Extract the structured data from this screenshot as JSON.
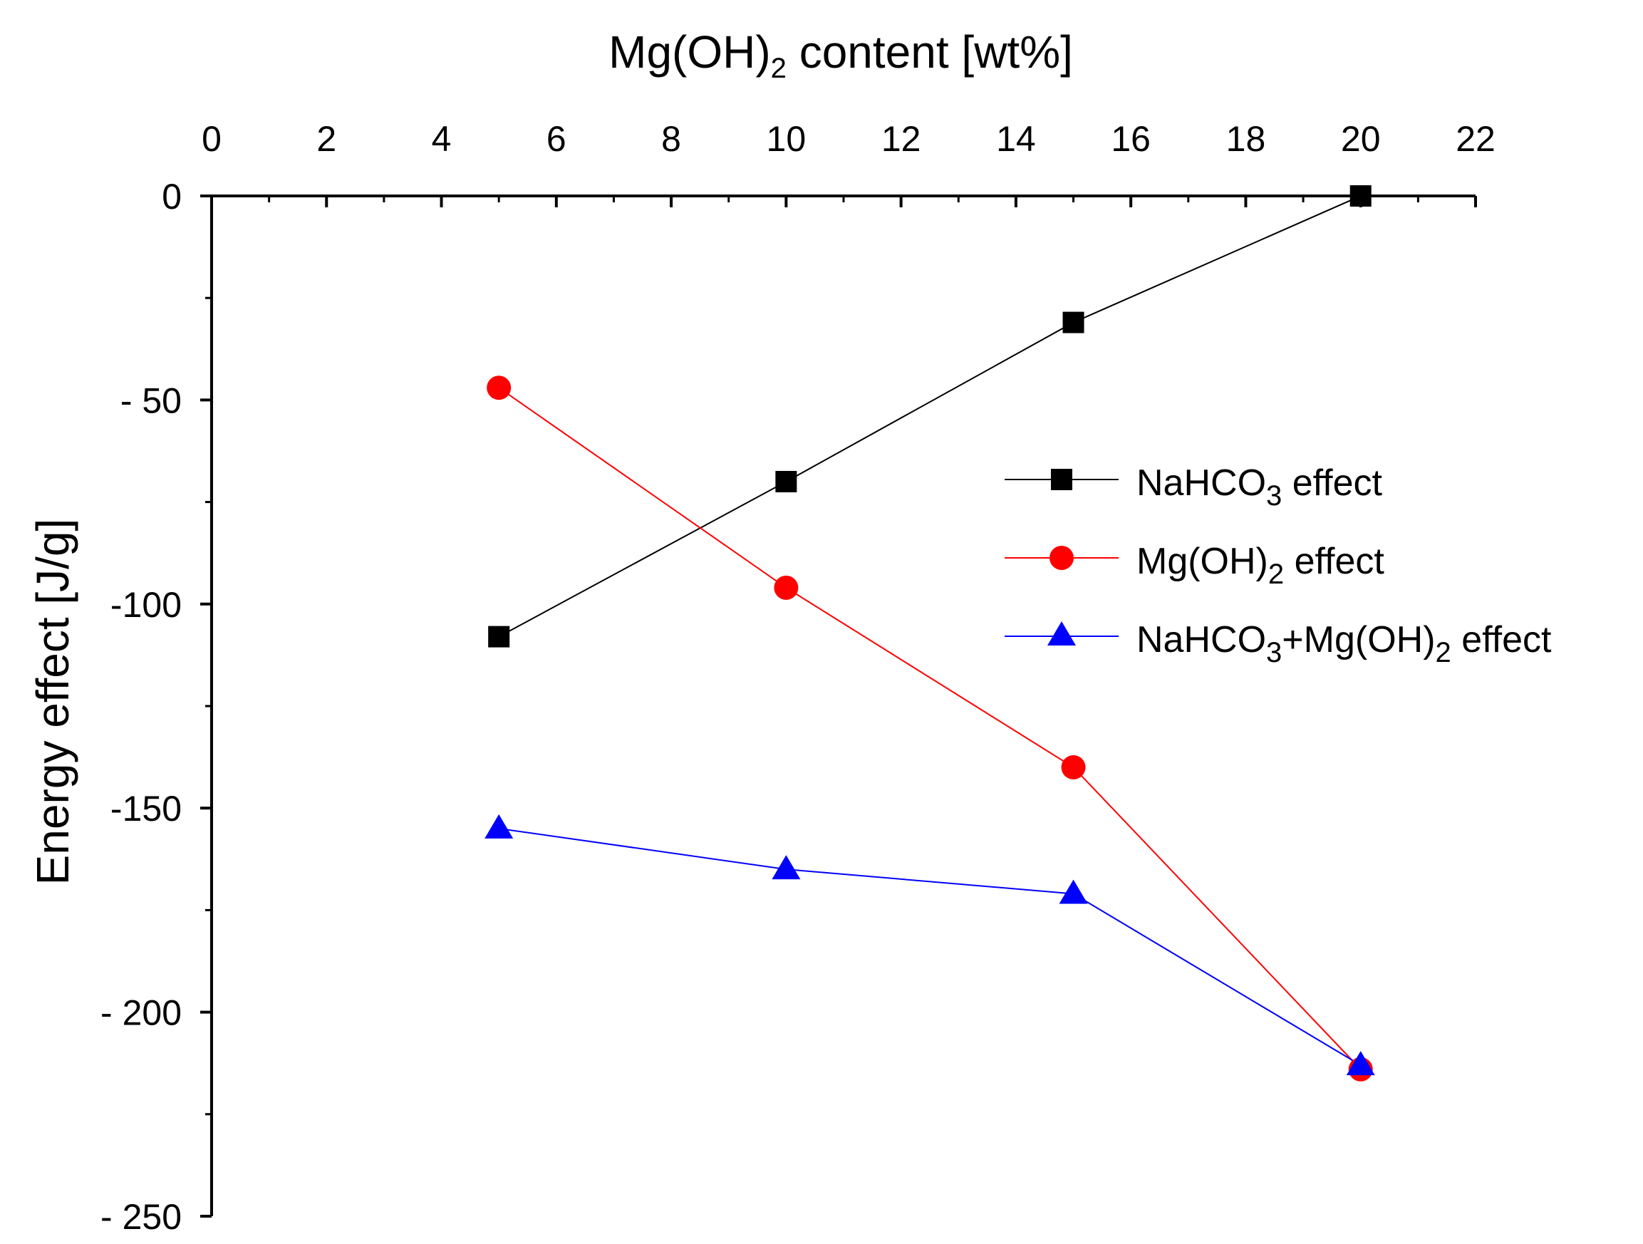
{
  "chart_data": {
    "type": "line",
    "title": "",
    "xlabel": "Mg(OH)2 content [wt%]",
    "xlabel_parts": [
      "Mg(OH)",
      "2",
      " content [wt%]"
    ],
    "ylabel": "Energy effect [J/g]",
    "xlim": [
      0,
      22
    ],
    "ylim": [
      -250,
      0
    ],
    "x_ticks": [
      0,
      2,
      4,
      6,
      8,
      10,
      12,
      14,
      16,
      18,
      20,
      22
    ],
    "y_ticks": [
      0,
      -50,
      -100,
      -150,
      -200,
      -250
    ],
    "y_tick_labels": [
      "0",
      "- 50",
      "-100",
      "-150",
      "- 200",
      "- 250"
    ],
    "x_axis_position": "top",
    "grid": false,
    "legend_position": "right",
    "series": [
      {
        "name": "NaHCO3 effect",
        "name_parts": [
          "NaHCO",
          "3",
          " effect"
        ],
        "color": "#000000",
        "marker": "square",
        "x": [
          5,
          10,
          15,
          20
        ],
        "values": [
          -108,
          -70,
          -31,
          0
        ]
      },
      {
        "name": "Mg(OH)2 effect",
        "name_parts": [
          "Mg(OH)",
          "2",
          " effect"
        ],
        "color": "#ff0000",
        "marker": "circle",
        "x": [
          5,
          10,
          15,
          20
        ],
        "values": [
          -47,
          -96,
          -140,
          -214
        ]
      },
      {
        "name": "NaHCO3+Mg(OH)2 effect",
        "name_parts": [
          "NaHCO",
          "3",
          "+Mg(OH)",
          "2",
          " effect"
        ],
        "color": "#0000ff",
        "marker": "triangle",
        "x": [
          5,
          10,
          15,
          20
        ],
        "values": [
          -155,
          -165,
          -171,
          -213
        ]
      }
    ]
  }
}
